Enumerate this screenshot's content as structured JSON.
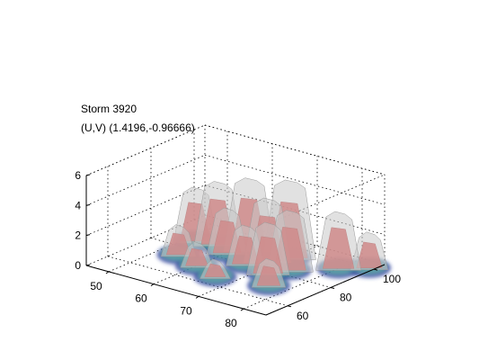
{
  "chart_data": {
    "type": "surface3d",
    "title_lines": [
      "Storm 3920",
      "(U,V) (1.4196,-0.96666)"
    ],
    "xlabel": "",
    "ylabel": "",
    "zlabel": "",
    "x_ticks": [
      50,
      60,
      70,
      80
    ],
    "y_ticks": [
      60,
      80,
      100
    ],
    "z_ticks": [
      0,
      2,
      4,
      6
    ],
    "xlim": [
      45,
      85
    ],
    "ylim": [
      50,
      105
    ],
    "zlim": [
      0,
      6
    ],
    "grid": true,
    "layers": [
      {
        "name": "base",
        "color": "#2a3a9a"
      },
      {
        "name": "mid",
        "color": "#5ab0a0"
      },
      {
        "name": "core",
        "color": "#d84040"
      },
      {
        "name": "envelope",
        "color": "#c8c8c8"
      }
    ],
    "blobs": [
      {
        "x": 52,
        "y": 86,
        "z": 3.6
      },
      {
        "x": 56,
        "y": 88,
        "z": 4.2
      },
      {
        "x": 60,
        "y": 84,
        "z": 3.0
      },
      {
        "x": 62,
        "y": 90,
        "z": 4.8
      },
      {
        "x": 66,
        "y": 80,
        "z": 2.6
      },
      {
        "x": 68,
        "y": 86,
        "z": 4.2
      },
      {
        "x": 72,
        "y": 78,
        "z": 3.4
      },
      {
        "x": 74,
        "y": 84,
        "z": 4.0
      },
      {
        "x": 70,
        "y": 92,
        "z": 5.2
      },
      {
        "x": 80,
        "y": 94,
        "z": 3.8
      },
      {
        "x": 84,
        "y": 100,
        "z": 2.4
      },
      {
        "x": 54,
        "y": 74,
        "z": 2.0
      },
      {
        "x": 60,
        "y": 70,
        "z": 1.6
      },
      {
        "x": 66,
        "y": 66,
        "z": 1.2
      },
      {
        "x": 76,
        "y": 70,
        "z": 1.8
      }
    ]
  }
}
